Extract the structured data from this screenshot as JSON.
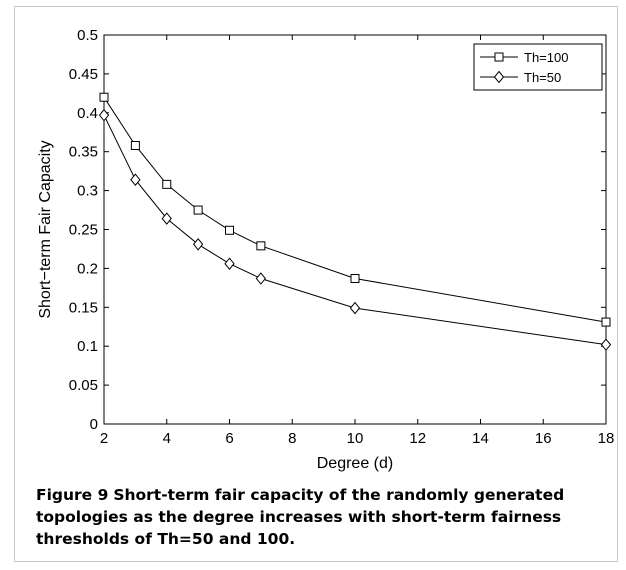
{
  "figure": {
    "caption_label": "Figure 9",
    "caption_text": "Short-term fair capacity of the randomly generated topologies as the degree increases with short-term fairness thresholds of Th=50 and 100."
  },
  "chart_data": {
    "type": "line",
    "title": "",
    "xlabel": "Degree (d)",
    "ylabel": "Short−term Fair Capacity",
    "x_tick_labels": [
      "2",
      "4",
      "6",
      "8",
      "10",
      "12",
      "14",
      "16",
      "18"
    ],
    "x_ticks": [
      2,
      4,
      6,
      8,
      10,
      12,
      14,
      16,
      18
    ],
    "y_tick_labels": [
      "0",
      "0.05",
      "0.1",
      "0.15",
      "0.2",
      "0.25",
      "0.3",
      "0.35",
      "0.4",
      "0.45",
      "0.5"
    ],
    "y_ticks": [
      0,
      0.05,
      0.1,
      0.15,
      0.2,
      0.25,
      0.3,
      0.35,
      0.4,
      0.45,
      0.5
    ],
    "xlim": [
      2,
      18
    ],
    "ylim": [
      0,
      0.5
    ],
    "grid": false,
    "legend_position": "top-right",
    "line_color": "#000000",
    "series": [
      {
        "name": "Th=100",
        "marker": "square",
        "x": [
          2,
          3,
          4,
          5,
          6,
          7,
          10,
          18
        ],
        "y": [
          0.42,
          0.358,
          0.308,
          0.275,
          0.249,
          0.229,
          0.187,
          0.131
        ]
      },
      {
        "name": "Th=50",
        "marker": "diamond",
        "x": [
          2,
          3,
          4,
          5,
          6,
          7,
          10,
          18
        ],
        "y": [
          0.397,
          0.314,
          0.264,
          0.231,
          0.206,
          0.187,
          0.149,
          0.102
        ]
      }
    ]
  }
}
